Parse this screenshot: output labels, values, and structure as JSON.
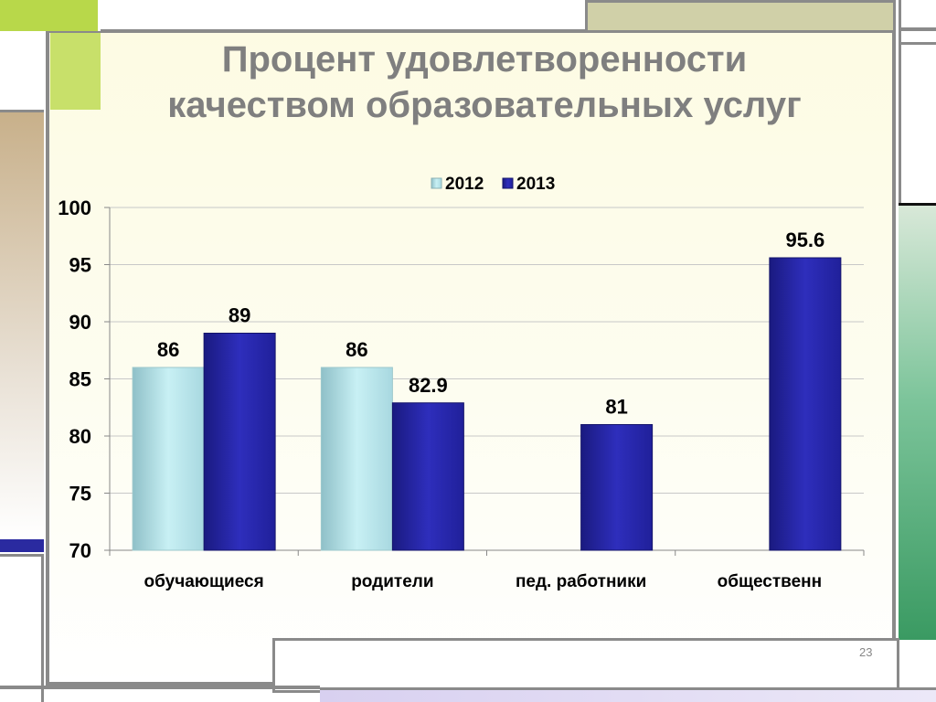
{
  "slide": {
    "title_line1": "Процент удовлетворенности",
    "title_line2": "качеством образовательных услуг",
    "page_number": "23"
  },
  "chart_data": {
    "type": "bar",
    "categories": [
      "обучающиеся",
      "родители",
      "пед. работники",
      "общественн"
    ],
    "series": [
      {
        "name": "2012",
        "values": [
          86,
          86,
          null,
          null
        ],
        "color": "#bfeaf0"
      },
      {
        "name": "2013",
        "values": [
          89,
          82.9,
          81,
          95.6
        ],
        "color": "#2626a8"
      }
    ],
    "data_labels": [
      [
        "86",
        "86",
        null,
        null
      ],
      [
        "89",
        "82.9",
        "81",
        "95.6"
      ]
    ],
    "ylim": [
      70,
      100
    ],
    "yticks": [
      70,
      75,
      80,
      85,
      90,
      95,
      100
    ],
    "grid": true,
    "legend_position": "top"
  }
}
